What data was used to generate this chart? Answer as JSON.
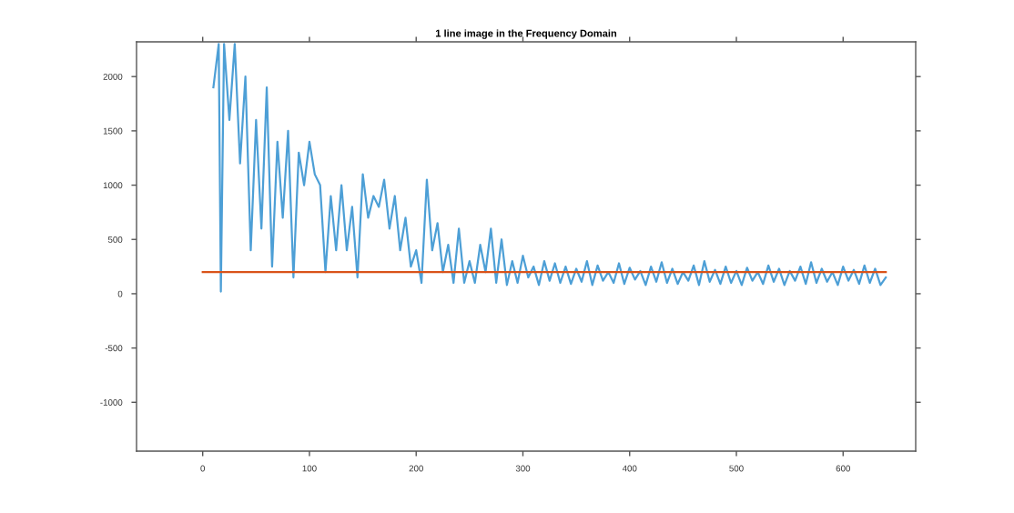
{
  "chart_data": {
    "type": "line",
    "title": "1 line image in the Frequency Domain",
    "series": [
      {
        "color": "#4d9fd6",
        "x": [
          10,
          15,
          17,
          20,
          25,
          30,
          35,
          40,
          45,
          50,
          55,
          60,
          65,
          70,
          75,
          80,
          85,
          90,
          95,
          100,
          105,
          110,
          115,
          120,
          125,
          130,
          135,
          140,
          145,
          150,
          155,
          160,
          165,
          170,
          175,
          180,
          185,
          190,
          195,
          200,
          205,
          210,
          215,
          220,
          225,
          230,
          235,
          240,
          245,
          250,
          255,
          260,
          265,
          270,
          275,
          280,
          285,
          290,
          295,
          300,
          305,
          310,
          315,
          320,
          325,
          330,
          335,
          340,
          345,
          350,
          355,
          360,
          365,
          370,
          375,
          380,
          385,
          390,
          395,
          400,
          405,
          410,
          415,
          420,
          425,
          430,
          435,
          440,
          445,
          450,
          455,
          460,
          465,
          470,
          475,
          480,
          485,
          490,
          495,
          500,
          505,
          510,
          515,
          520,
          525,
          530,
          535,
          540,
          545,
          550,
          555,
          560,
          565,
          570,
          575,
          580,
          585,
          590,
          595,
          600,
          605,
          610,
          615,
          620,
          625,
          630,
          635,
          640
        ],
        "values": [
          1900,
          2300,
          20,
          2300,
          1600,
          2300,
          1200,
          2000,
          400,
          1600,
          600,
          1900,
          250,
          1400,
          700,
          1500,
          150,
          1300,
          1000,
          1400,
          1100,
          1000,
          200,
          900,
          400,
          1000,
          400,
          800,
          150,
          1100,
          700,
          900,
          800,
          1050,
          600,
          900,
          400,
          700,
          250,
          400,
          100,
          1050,
          400,
          650,
          200,
          450,
          100,
          600,
          100,
          300,
          100,
          450,
          200,
          600,
          100,
          500,
          80,
          300,
          100,
          350,
          150,
          250,
          80,
          300,
          120,
          280,
          100,
          250,
          90,
          230,
          110,
          300,
          80,
          260,
          120,
          200,
          100,
          280,
          90,
          240,
          130,
          210,
          80,
          250,
          110,
          290,
          100,
          230,
          90,
          200,
          120,
          260,
          80,
          300,
          110,
          220,
          90,
          250,
          100,
          210,
          80,
          240,
          120,
          200,
          90,
          260,
          110,
          230,
          80,
          210,
          120,
          250,
          90,
          290,
          100,
          230,
          110,
          200,
          80,
          250,
          120,
          220,
          90,
          260,
          100,
          230,
          80,
          150
        ]
      },
      {
        "color": "#d95319",
        "x": [
          0,
          640
        ],
        "values": [
          200,
          200
        ]
      }
    ],
    "xlim": [
      -62,
      668
    ],
    "ylim": [
      -1450,
      2320
    ],
    "xticks": [
      0,
      100,
      200,
      300,
      400,
      500,
      600
    ],
    "yticks": [
      -1000,
      -500,
      0,
      500,
      1000,
      1500,
      2000
    ],
    "grid": false,
    "legend": false
  }
}
